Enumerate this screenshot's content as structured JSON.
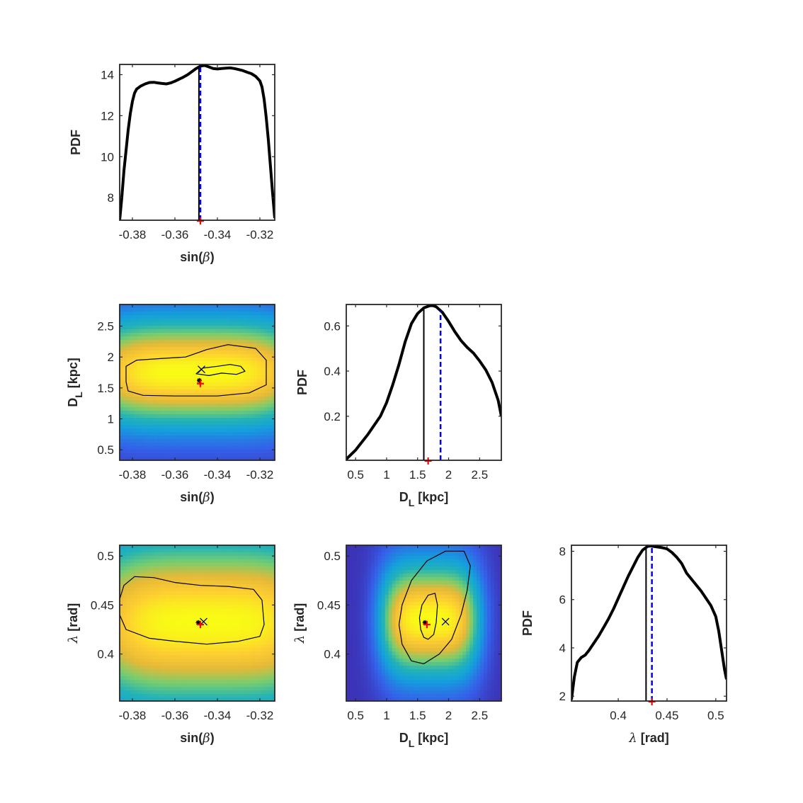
{
  "colors": {
    "pdf_line": "#000000",
    "median_line": "#000000",
    "mean_line": "#0000ff",
    "true_marker": "#ff0000",
    "map_marker": "#00008b",
    "heat_low": "#3e26a8",
    "heat_mid": "#23b3b6",
    "heat_high": "#f9fb15"
  },
  "chart_data": [
    {
      "id": "p11",
      "type": "line",
      "xlabel_text": "sin(",
      "xlabel_sym": "β",
      "xlabel_end": ")",
      "ylabel": "PDF",
      "xlim": [
        -0.386,
        -0.313
      ],
      "ylim": [
        6.9,
        14.5
      ],
      "xticks": [
        -0.38,
        -0.36,
        -0.34,
        -0.32
      ],
      "yticks": [
        8,
        10,
        12,
        14
      ],
      "series": [
        {
          "x": [
            -0.386,
            -0.385,
            -0.384,
            -0.383,
            -0.382,
            -0.381,
            -0.38,
            -0.379,
            -0.378,
            -0.376,
            -0.374,
            -0.372,
            -0.37,
            -0.368,
            -0.366,
            -0.364,
            -0.362,
            -0.36,
            -0.358,
            -0.356,
            -0.354,
            -0.352,
            -0.35,
            -0.348,
            -0.346,
            -0.344,
            -0.342,
            -0.34,
            -0.338,
            -0.336,
            -0.334,
            -0.332,
            -0.33,
            -0.328,
            -0.326,
            -0.324,
            -0.322,
            -0.32,
            -0.319,
            -0.318,
            -0.317,
            -0.316,
            -0.315,
            -0.314,
            -0.313
          ],
          "y": [
            6.9,
            8.0,
            9.3,
            10.3,
            11.3,
            12.1,
            12.7,
            13.1,
            13.3,
            13.45,
            13.55,
            13.62,
            13.63,
            13.6,
            13.57,
            13.55,
            13.6,
            13.68,
            13.78,
            13.88,
            14.0,
            14.15,
            14.3,
            14.42,
            14.45,
            14.38,
            14.3,
            14.28,
            14.3,
            14.32,
            14.33,
            14.3,
            14.25,
            14.2,
            14.12,
            14.05,
            13.92,
            13.7,
            13.4,
            12.8,
            11.9,
            10.8,
            9.5,
            8.2,
            7.0
          ]
        }
      ],
      "median": -0.3487,
      "mean": -0.348,
      "true_value": -0.348
    },
    {
      "id": "p21",
      "type": "heatmap",
      "xlabel_text": "sin(",
      "xlabel_sym": "β",
      "xlabel_end": ")",
      "ylabel_main": "D",
      "ylabel_sub": "L",
      "ylabel_end": " [kpc]",
      "xlim": [
        -0.386,
        -0.313
      ],
      "ylim": [
        0.33,
        2.85
      ],
      "xticks": [
        -0.38,
        -0.36,
        -0.34,
        -0.32
      ],
      "yticks": [
        0.5,
        1,
        1.5,
        2,
        2.5
      ],
      "peak": [
        -0.35,
        1.75
      ],
      "spread": [
        0.045,
        0.75
      ],
      "contours": [
        [
          [
            -0.383,
            1.6
          ],
          [
            -0.383,
            1.85
          ],
          [
            -0.378,
            1.95
          ],
          [
            -0.365,
            1.98
          ],
          [
            -0.355,
            2.0
          ],
          [
            -0.345,
            2.12
          ],
          [
            -0.335,
            2.2
          ],
          [
            -0.322,
            2.14
          ],
          [
            -0.317,
            1.95
          ],
          [
            -0.317,
            1.55
          ],
          [
            -0.325,
            1.42
          ],
          [
            -0.34,
            1.37
          ],
          [
            -0.36,
            1.37
          ],
          [
            -0.375,
            1.38
          ],
          [
            -0.382,
            1.45
          ]
        ],
        [
          [
            -0.35,
            1.73
          ],
          [
            -0.347,
            1.82
          ],
          [
            -0.34,
            1.85
          ],
          [
            -0.334,
            1.88
          ],
          [
            -0.329,
            1.85
          ],
          [
            -0.327,
            1.77
          ],
          [
            -0.331,
            1.72
          ],
          [
            -0.338,
            1.74
          ],
          [
            -0.344,
            1.7
          ]
        ]
      ],
      "median": [
        -0.3485,
        1.62
      ],
      "mean": [
        -0.3475,
        1.8
      ],
      "true_value": [
        -0.348,
        1.57
      ]
    },
    {
      "id": "p22",
      "type": "line",
      "xlabel_main": "D",
      "xlabel_sub": "L",
      "xlabel_end": " [kpc]",
      "ylabel": "PDF",
      "xlim": [
        0.35,
        2.85
      ],
      "ylim": [
        0.005,
        0.695
      ],
      "xticks": [
        0.5,
        1,
        1.5,
        2,
        2.5
      ],
      "yticks": [
        0.2,
        0.4,
        0.6
      ],
      "series": [
        {
          "x": [
            0.35,
            0.5,
            0.7,
            0.9,
            1.0,
            1.1,
            1.2,
            1.3,
            1.4,
            1.5,
            1.6,
            1.7,
            1.75,
            1.8,
            1.9,
            2.0,
            2.1,
            2.2,
            2.3,
            2.4,
            2.5,
            2.6,
            2.7,
            2.8,
            2.85
          ],
          "y": [
            0.01,
            0.05,
            0.12,
            0.2,
            0.26,
            0.34,
            0.43,
            0.53,
            0.61,
            0.655,
            0.68,
            0.69,
            0.69,
            0.685,
            0.66,
            0.62,
            0.575,
            0.535,
            0.505,
            0.48,
            0.445,
            0.405,
            0.35,
            0.27,
            0.2
          ]
        }
      ],
      "median": 1.6,
      "mean": 1.87,
      "true_value": 1.67
    },
    {
      "id": "p31",
      "type": "heatmap",
      "xlabel_text": "sin(",
      "xlabel_sym": "β",
      "xlabel_end": ")",
      "ylabel_text": "",
      "ylabel_sym": "λ",
      "ylabel_end": " [rad]",
      "xlim": [
        -0.386,
        -0.313
      ],
      "ylim": [
        0.352,
        0.511
      ],
      "xticks": [
        -0.38,
        -0.36,
        -0.34,
        -0.32
      ],
      "yticks": [
        0.4,
        0.45,
        0.5
      ],
      "peak": [
        -0.345,
        0.432
      ],
      "spread": [
        0.05,
        0.075
      ],
      "contours": [
        [
          [
            -0.384,
            0.47
          ],
          [
            -0.379,
            0.479
          ],
          [
            -0.37,
            0.478
          ],
          [
            -0.36,
            0.473
          ],
          [
            -0.348,
            0.47
          ],
          [
            -0.335,
            0.469
          ],
          [
            -0.323,
            0.466
          ],
          [
            -0.319,
            0.455
          ],
          [
            -0.318,
            0.43
          ],
          [
            -0.32,
            0.418
          ],
          [
            -0.33,
            0.413
          ],
          [
            -0.345,
            0.41
          ],
          [
            -0.36,
            0.413
          ],
          [
            -0.372,
            0.416
          ],
          [
            -0.383,
            0.425
          ],
          [
            -0.386,
            0.44
          ],
          [
            -0.386,
            0.456
          ]
        ]
      ],
      "median": [
        -0.349,
        0.432
      ],
      "mean": [
        -0.3465,
        0.433
      ],
      "true_value": [
        -0.348,
        0.43
      ]
    },
    {
      "id": "p32",
      "type": "heatmap",
      "xlabel_main": "D",
      "xlabel_sub": "L",
      "xlabel_end": " [kpc]",
      "ylabel_text": "",
      "ylabel_sym": "λ",
      "ylabel_end": " [rad]",
      "xlim": [
        0.35,
        2.85
      ],
      "ylim": [
        0.352,
        0.511
      ],
      "xticks": [
        0.5,
        1,
        1.5,
        2,
        2.5
      ],
      "yticks": [
        0.4,
        0.45,
        0.5
      ],
      "peak": [
        1.7,
        0.435
      ],
      "spread": [
        0.65,
        0.05
      ],
      "contours": [
        [
          [
            1.25,
            0.41
          ],
          [
            1.2,
            0.43
          ],
          [
            1.25,
            0.45
          ],
          [
            1.4,
            0.475
          ],
          [
            1.65,
            0.495
          ],
          [
            1.95,
            0.505
          ],
          [
            2.25,
            0.505
          ],
          [
            2.35,
            0.49
          ],
          [
            2.3,
            0.465
          ],
          [
            2.2,
            0.44
          ],
          [
            2.05,
            0.415
          ],
          [
            1.85,
            0.4
          ],
          [
            1.6,
            0.39
          ],
          [
            1.4,
            0.393
          ]
        ],
        [
          [
            1.55,
            0.425
          ],
          [
            1.53,
            0.437
          ],
          [
            1.57,
            0.45
          ],
          [
            1.67,
            0.46
          ],
          [
            1.78,
            0.462
          ],
          [
            1.82,
            0.45
          ],
          [
            1.8,
            0.432
          ],
          [
            1.76,
            0.42
          ],
          [
            1.67,
            0.415
          ],
          [
            1.6,
            0.417
          ]
        ]
      ],
      "median": [
        1.62,
        0.432
      ],
      "mean": [
        1.95,
        0.433
      ],
      "true_value": [
        1.65,
        0.43
      ]
    },
    {
      "id": "p33",
      "type": "line",
      "xlabel_text": "",
      "xlabel_sym": "λ",
      "xlabel_end": " [rad]",
      "ylabel": "PDF",
      "xlim": [
        0.352,
        0.511
      ],
      "ylim": [
        1.8,
        8.25
      ],
      "xticks": [
        0.4,
        0.45,
        0.5
      ],
      "yticks": [
        2,
        4,
        6,
        8
      ],
      "series": [
        {
          "x": [
            0.352,
            0.355,
            0.358,
            0.362,
            0.366,
            0.37,
            0.375,
            0.38,
            0.385,
            0.39,
            0.395,
            0.4,
            0.405,
            0.41,
            0.415,
            0.42,
            0.425,
            0.43,
            0.433,
            0.436,
            0.44,
            0.445,
            0.45,
            0.455,
            0.46,
            0.465,
            0.47,
            0.475,
            0.48,
            0.485,
            0.49,
            0.495,
            0.5,
            0.503,
            0.506,
            0.509,
            0.511
          ],
          "y": [
            1.85,
            2.8,
            3.4,
            3.6,
            3.7,
            3.9,
            4.2,
            4.5,
            4.85,
            5.2,
            5.6,
            6.05,
            6.5,
            6.95,
            7.35,
            7.75,
            8.05,
            8.2,
            8.22,
            8.2,
            8.18,
            8.15,
            8.1,
            7.95,
            7.75,
            7.5,
            7.1,
            6.85,
            6.6,
            6.35,
            6.05,
            5.75,
            5.3,
            4.7,
            3.9,
            3.1,
            2.7
          ]
        }
      ],
      "median": 0.4285,
      "mean": 0.4345,
      "true_value": 0.4345
    }
  ]
}
